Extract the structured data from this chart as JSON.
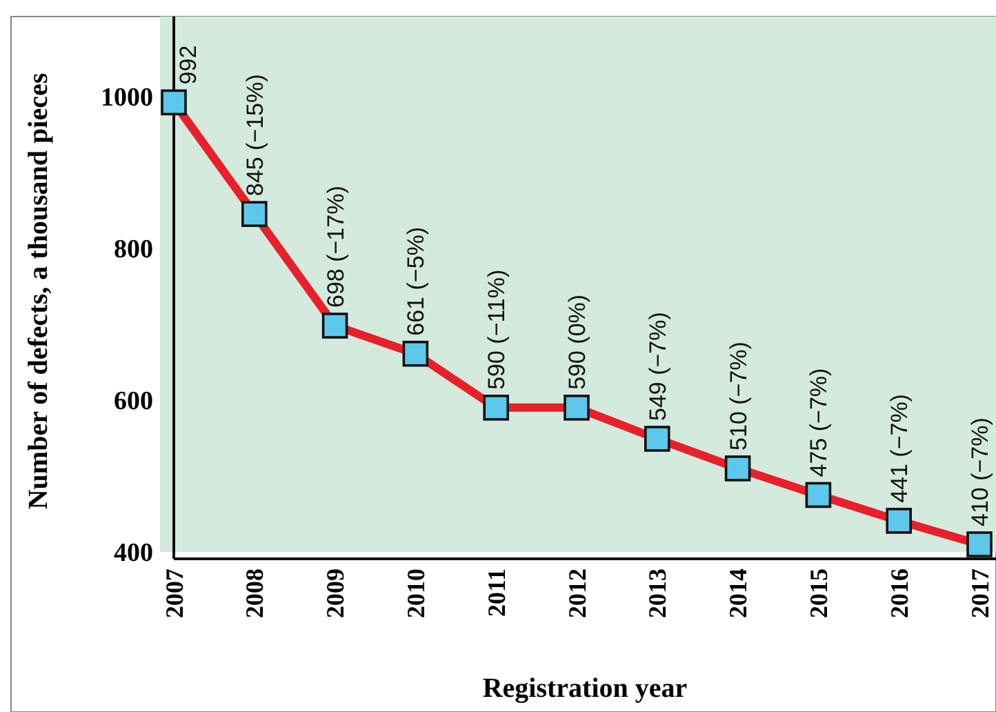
{
  "chart_data": {
    "type": "line",
    "xlabel": "Registration year",
    "ylabel": "Number of defects, a thousand pieces",
    "categories": [
      "2007",
      "2008",
      "2009",
      "2010",
      "2011",
      "2012",
      "2013",
      "2014",
      "2015",
      "2016",
      "2017"
    ],
    "values": [
      992,
      845,
      698,
      661,
      590,
      590,
      549,
      510,
      475,
      441,
      410
    ],
    "value_labels": [
      "992",
      "845 (−15%)",
      "698 (−17%)",
      "661 (−5%)",
      "590 (−11%)",
      "590 (0%)",
      "549 (−7%)",
      "510 (−7%)",
      "475 (−7%)",
      "441 (−7%)",
      "410 (−7%)"
    ],
    "color": "#e8202a",
    "marker": "square",
    "line_style": "solid",
    "ylim": [
      400,
      1105
    ],
    "yticks": [
      400,
      600,
      800,
      1000
    ]
  }
}
